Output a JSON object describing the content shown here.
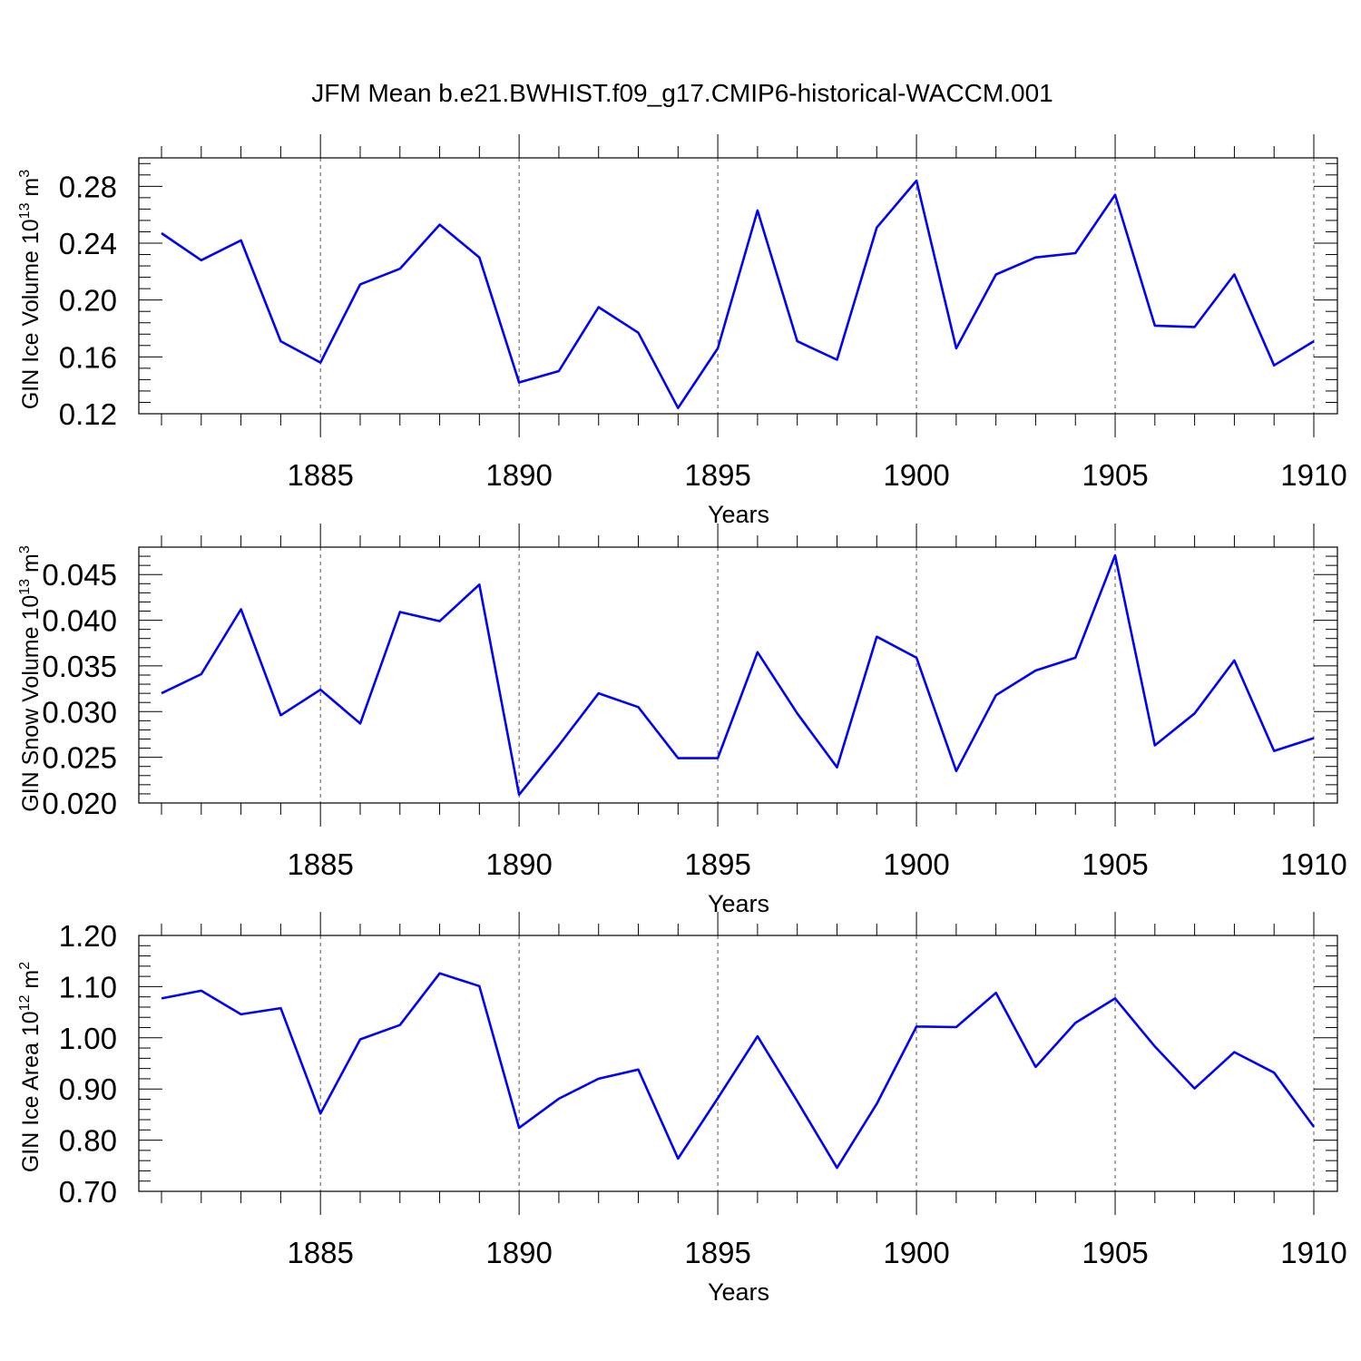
{
  "title": "JFM Mean b.e21.BWHIST.f09_g17.CMIP6-historical-WACCM.001",
  "colors": {
    "line": "#0000ff",
    "axes": "#000000",
    "grid": "#555555"
  },
  "chart_data": [
    {
      "type": "line",
      "ylabel": {
        "base": "GIN Ice Volume 10",
        "exp": "13",
        "unit": " m",
        "unit_exp": "3"
      },
      "xlabel": "Years",
      "xlim": [
        1881,
        1910
      ],
      "ylim": [
        0.12,
        0.3
      ],
      "y_ticks": [
        0.12,
        0.16,
        0.2,
        0.24,
        0.28
      ],
      "y_tick_labels": [
        "0.12",
        "0.16",
        "0.20",
        "0.24",
        "0.28"
      ],
      "x_ticks": [
        1885,
        1890,
        1895,
        1900,
        1905,
        1910
      ],
      "x_tick_labels": [
        "1885",
        "1890",
        "1895",
        "1900",
        "1905",
        "1910"
      ],
      "grid": "vertical dashed at labeled years",
      "x": [
        1881,
        1882,
        1883,
        1884,
        1885,
        1886,
        1887,
        1888,
        1889,
        1890,
        1891,
        1892,
        1893,
        1894,
        1895,
        1896,
        1897,
        1898,
        1899,
        1900,
        1901,
        1902,
        1903,
        1904,
        1905,
        1906,
        1907,
        1908,
        1909,
        1910
      ],
      "values": [
        0.247,
        0.228,
        0.242,
        0.171,
        0.156,
        0.211,
        0.222,
        0.253,
        0.23,
        0.142,
        0.15,
        0.195,
        0.177,
        0.124,
        0.166,
        0.263,
        0.171,
        0.158,
        0.251,
        0.284,
        0.166,
        0.218,
        0.23,
        0.233,
        0.274,
        0.182,
        0.181,
        0.218,
        0.154,
        0.171
      ]
    },
    {
      "type": "line",
      "ylabel": {
        "base": "GIN Snow Volume 10",
        "exp": "13",
        "unit": " m",
        "unit_exp": "3"
      },
      "xlabel": "Years",
      "xlim": [
        1881,
        1910
      ],
      "ylim": [
        0.02,
        0.048
      ],
      "y_ticks": [
        0.02,
        0.025,
        0.03,
        0.035,
        0.04,
        0.045
      ],
      "y_tick_labels": [
        "0.020",
        "0.025",
        "0.030",
        "0.035",
        "0.040",
        "0.045"
      ],
      "x_ticks": [
        1885,
        1890,
        1895,
        1900,
        1905,
        1910
      ],
      "x_tick_labels": [
        "1885",
        "1890",
        "1895",
        "1900",
        "1905",
        "1910"
      ],
      "grid": "vertical dashed at labeled years",
      "x": [
        1881,
        1882,
        1883,
        1884,
        1885,
        1886,
        1887,
        1888,
        1889,
        1890,
        1891,
        1892,
        1893,
        1894,
        1895,
        1896,
        1897,
        1898,
        1899,
        1900,
        1901,
        1902,
        1903,
        1904,
        1905,
        1906,
        1907,
        1908,
        1909,
        1910
      ],
      "values": [
        0.032,
        0.0341,
        0.0412,
        0.0296,
        0.0324,
        0.0287,
        0.0409,
        0.0399,
        0.0439,
        0.0209,
        0.0263,
        0.032,
        0.0305,
        0.0249,
        0.0249,
        0.0365,
        0.0298,
        0.0239,
        0.0382,
        0.0359,
        0.0235,
        0.0318,
        0.0345,
        0.0359,
        0.0471,
        0.0263,
        0.0298,
        0.0356,
        0.0257,
        0.0271
      ]
    },
    {
      "type": "line",
      "ylabel": {
        "base": "GIN Ice Area 10",
        "exp": "12",
        "unit": " m",
        "unit_exp": "2"
      },
      "xlabel": "Years",
      "xlim": [
        1881,
        1910
      ],
      "ylim": [
        0.7,
        1.2
      ],
      "y_ticks": [
        0.7,
        0.8,
        0.9,
        1.0,
        1.1,
        1.2
      ],
      "y_tick_labels": [
        "0.70",
        "0.80",
        "0.90",
        "1.00",
        "1.10",
        "1.20"
      ],
      "x_ticks": [
        1885,
        1890,
        1895,
        1900,
        1905,
        1910
      ],
      "x_tick_labels": [
        "1885",
        "1890",
        "1895",
        "1900",
        "1905",
        "1910"
      ],
      "grid": "vertical dashed at labeled years",
      "x": [
        1881,
        1882,
        1883,
        1884,
        1885,
        1886,
        1887,
        1888,
        1889,
        1890,
        1891,
        1892,
        1893,
        1894,
        1895,
        1896,
        1897,
        1898,
        1899,
        1900,
        1901,
        1902,
        1903,
        1904,
        1905,
        1906,
        1907,
        1908,
        1909,
        1910
      ],
      "values": [
        1.077,
        1.092,
        1.046,
        1.058,
        0.852,
        0.997,
        1.025,
        1.126,
        1.101,
        0.824,
        0.881,
        0.92,
        0.938,
        0.764,
        0.882,
        1.003,
        0.876,
        0.746,
        0.871,
        1.022,
        1.021,
        1.088,
        0.943,
        1.029,
        1.077,
        0.983,
        0.901,
        0.972,
        0.932,
        0.826
      ]
    }
  ]
}
